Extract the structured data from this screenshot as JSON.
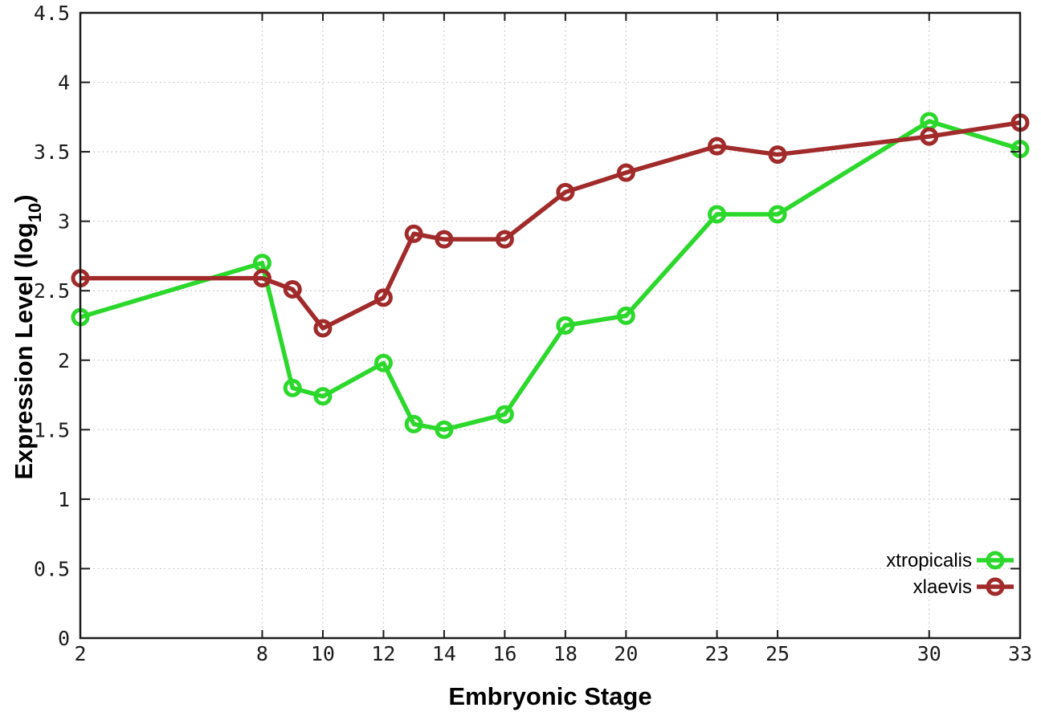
{
  "chart_data": {
    "type": "line",
    "x": [
      2,
      8,
      9,
      10,
      12,
      13,
      14,
      16,
      18,
      20,
      23,
      25,
      30,
      33
    ],
    "series": [
      {
        "name": "xtropicalis",
        "color": "#2bd82b",
        "values": [
          2.31,
          2.7,
          1.8,
          1.74,
          1.98,
          1.54,
          1.5,
          1.61,
          2.25,
          2.32,
          3.05,
          3.05,
          3.72,
          3.52
        ]
      },
      {
        "name": "xlaevis",
        "color": "#a12a2a",
        "values": [
          2.59,
          2.59,
          2.51,
          2.23,
          2.45,
          2.91,
          2.87,
          2.87,
          3.21,
          3.35,
          3.54,
          3.48,
          3.61,
          3.71
        ]
      }
    ],
    "title": "",
    "xlabel": "Embryonic Stage",
    "ylabel": "Expression Level (log10)",
    "ylabel_parts": {
      "base": "Expression Level (log",
      "sub": "10",
      "close": ")"
    },
    "xlim": [
      2,
      33
    ],
    "ylim": [
      0,
      4.5
    ],
    "x_ticks": [
      2,
      8,
      10,
      12,
      14,
      16,
      18,
      20,
      23,
      25,
      30,
      33
    ],
    "x_tick_labels": [
      "2",
      "8",
      "10",
      "12",
      "14",
      "16",
      "18",
      "20",
      "23",
      "25",
      "30",
      "33"
    ],
    "y_ticks": [
      0,
      0.5,
      1,
      1.5,
      2,
      2.5,
      3,
      3.5,
      4,
      4.5
    ],
    "y_tick_labels": [
      "0",
      "0.5",
      "1",
      "1.5",
      "2",
      "2.5",
      "3",
      "3.5",
      "4",
      "4.5"
    ],
    "grid": true,
    "grid_style": "dotted",
    "legend_position": "bottom-right",
    "legend_entries": [
      "xtropicalis",
      "xlaevis"
    ],
    "colors": {
      "background": "#ffffff",
      "border": "#1c1c1c",
      "grid": "#bfbfbf",
      "tick_text": "#1c1c1c",
      "xtropicalis": "#2bd82b",
      "xlaevis": "#a12a2a"
    },
    "marker": "open-circle"
  }
}
